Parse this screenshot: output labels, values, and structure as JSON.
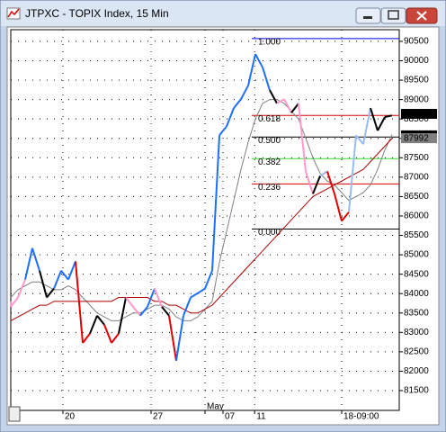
{
  "chart_data": {
    "type": "price",
    "title": "JTPXC - TOPIX Index, 15 Min",
    "xlim": [
      0,
      54
    ],
    "ylim": [
      80990,
      90800
    ],
    "yticks": [
      90500,
      90000,
      89500,
      89000,
      88500,
      88000,
      87500,
      87000,
      86500,
      86000,
      85500,
      85000,
      84500,
      84000,
      83500,
      83000,
      82500,
      82000,
      81500
    ],
    "xticks": [
      {
        "value": 7.25,
        "label": "20"
      },
      {
        "value": 19.5,
        "label": "27"
      },
      {
        "value": 27,
        "label": "May"
      },
      {
        "value": 29.5,
        "label": "07"
      },
      {
        "value": 33.9,
        "label": "11"
      },
      {
        "value": 46,
        "label": "18-09:00"
      }
    ],
    "grid": true,
    "price": {
      "values": [
        83660,
        83900,
        84360,
        85170,
        84590,
        83900,
        84130,
        84590,
        84360,
        84830,
        82730,
        82970,
        83430,
        83200,
        82730,
        82970,
        83900,
        83660,
        83430,
        83660,
        84130,
        83660,
        83430,
        82270,
        83430,
        83900,
        84010,
        84130,
        84590,
        88080,
        88310,
        88780,
        89010,
        89360,
        90170,
        89830,
        89240,
        88900,
        89010,
        88660,
        88900,
        87150,
        86570,
        87030,
        87150,
        86570,
        85870,
        86100,
        88080,
        87850,
        88780,
        88200,
        88550,
        88590
      ],
      "colors": [
        "#ff99cc",
        "#ff99cc",
        "#ff99cc",
        "#1e6fff",
        "#1e6fff",
        "#000000",
        "#000000",
        "#1e6fff",
        "#1e6fff",
        "#1e6fff",
        "#e00000",
        "#e00000",
        "#000000",
        "#000000",
        "#e00000",
        "#e00000",
        "#000000",
        "#ff99cc",
        "#ff99cc",
        "#1e6fff",
        "#1e6fff",
        "#ff99cc",
        "#000000",
        "#e00000",
        "#1e6fff",
        "#1e6fff",
        "#1e6fff",
        "#1e6fff",
        "#1e6fff",
        "#1e6fff",
        "#1e6fff",
        "#1e6fff",
        "#1e6fff",
        "#1e6fff",
        "#1e6fff",
        "#1e6fff",
        "#1e6fff",
        "#000000",
        "#ff99cc",
        "#ff99cc",
        "#000000",
        "#ff99cc",
        "#ff99cc",
        "#000000",
        "#99bbee",
        "#e00000",
        "#e00000",
        "#e00000",
        "#99bbee",
        "#99bbee",
        "#99bbee",
        "#000000",
        "#000000",
        "#000000"
      ]
    },
    "series": [
      {
        "color": "#808080",
        "values": [
          83900,
          84100,
          84200,
          84300,
          84300,
          84200,
          84100,
          84100,
          84200,
          84100,
          83900,
          83700,
          83500,
          83400,
          83300,
          83300,
          83400,
          83500,
          83500,
          83600,
          83700,
          83700,
          83600,
          83400,
          83300,
          83300,
          83400,
          83600,
          83800,
          84800,
          85600,
          86400,
          87200,
          87900,
          88500,
          88900,
          89000,
          89000,
          88900,
          88700,
          88500,
          88000,
          87500,
          87100,
          86900,
          86800,
          86600,
          86400,
          86500,
          86600,
          86800,
          87200,
          87700,
          88100
        ]
      },
      {
        "color": "#b00000",
        "values": [
          83300,
          83400,
          83500,
          83600,
          83700,
          83700,
          83800,
          83800,
          83800,
          83800,
          83800,
          83800,
          83800,
          83800,
          83800,
          83900,
          83900,
          83900,
          83900,
          83900,
          83800,
          83800,
          83700,
          83700,
          83600,
          83500,
          83500,
          83600,
          83700,
          83900,
          84100,
          84300,
          84500,
          84700,
          84900,
          85100,
          85300,
          85500,
          85700,
          85900,
          86100,
          86300,
          86500,
          86600,
          86700,
          86800,
          86900,
          87000,
          87100,
          87200,
          87400,
          87600,
          87800,
          88000
        ]
      }
    ],
    "fib_levels": [
      {
        "label": "1.000",
        "value": 90570,
        "color": "#0000ff"
      },
      {
        "label": "0.618",
        "value": 88590,
        "color": "#e00000"
      },
      {
        "label": "0.500",
        "value": 88035,
        "color": "#000000"
      },
      {
        "label": "0.382",
        "value": 87477,
        "color": "#33dd33"
      },
      {
        "label": "0.236",
        "value": 86826,
        "color": "#e00000"
      },
      {
        "label": "0.000",
        "value": 85663,
        "color": "#000000"
      }
    ],
    "price_markers": [
      88620,
      88066,
      87992
    ],
    "price_marker_colors": [
      "#000000",
      "#000000",
      "#808080"
    ]
  }
}
